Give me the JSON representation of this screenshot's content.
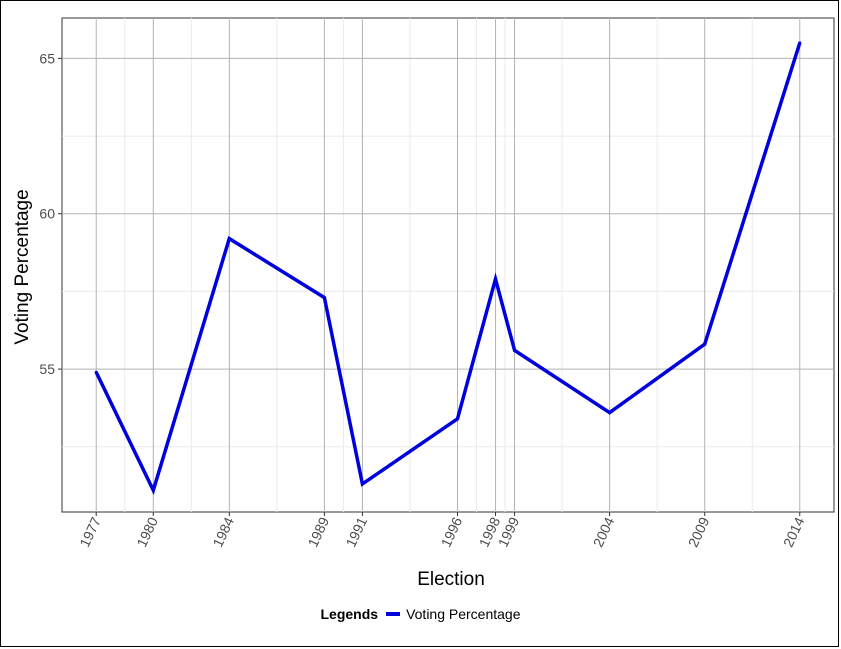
{
  "chart_data": {
    "type": "line",
    "xlabel": "Election",
    "ylabel": "Voting Percentage",
    "x": [
      1977,
      1980,
      1984,
      1989,
      1991,
      1996,
      1998,
      1999,
      2004,
      2009,
      2014
    ],
    "x_tick_labels": [
      "1977",
      "1980",
      "1984",
      "1989",
      "1991",
      "1996",
      "1998",
      "1999",
      "2004",
      "2009",
      "2014"
    ],
    "y_ticks": [
      55,
      60,
      65
    ],
    "y_tick_labels": [
      "55",
      "60",
      "65"
    ],
    "ylim": [
      50.4,
      66.3
    ],
    "xlim": [
      1975.2,
      2015.8
    ],
    "series": [
      {
        "name": "Voting Percentage",
        "color": "#0000dd",
        "values": [
          54.9,
          51.1,
          59.2,
          57.3,
          51.3,
          53.4,
          57.9,
          55.6,
          53.6,
          55.8,
          65.5
        ]
      }
    ],
    "legend": {
      "title": "Legends",
      "position": "bottom"
    },
    "grid": true,
    "minor_grid": true
  }
}
